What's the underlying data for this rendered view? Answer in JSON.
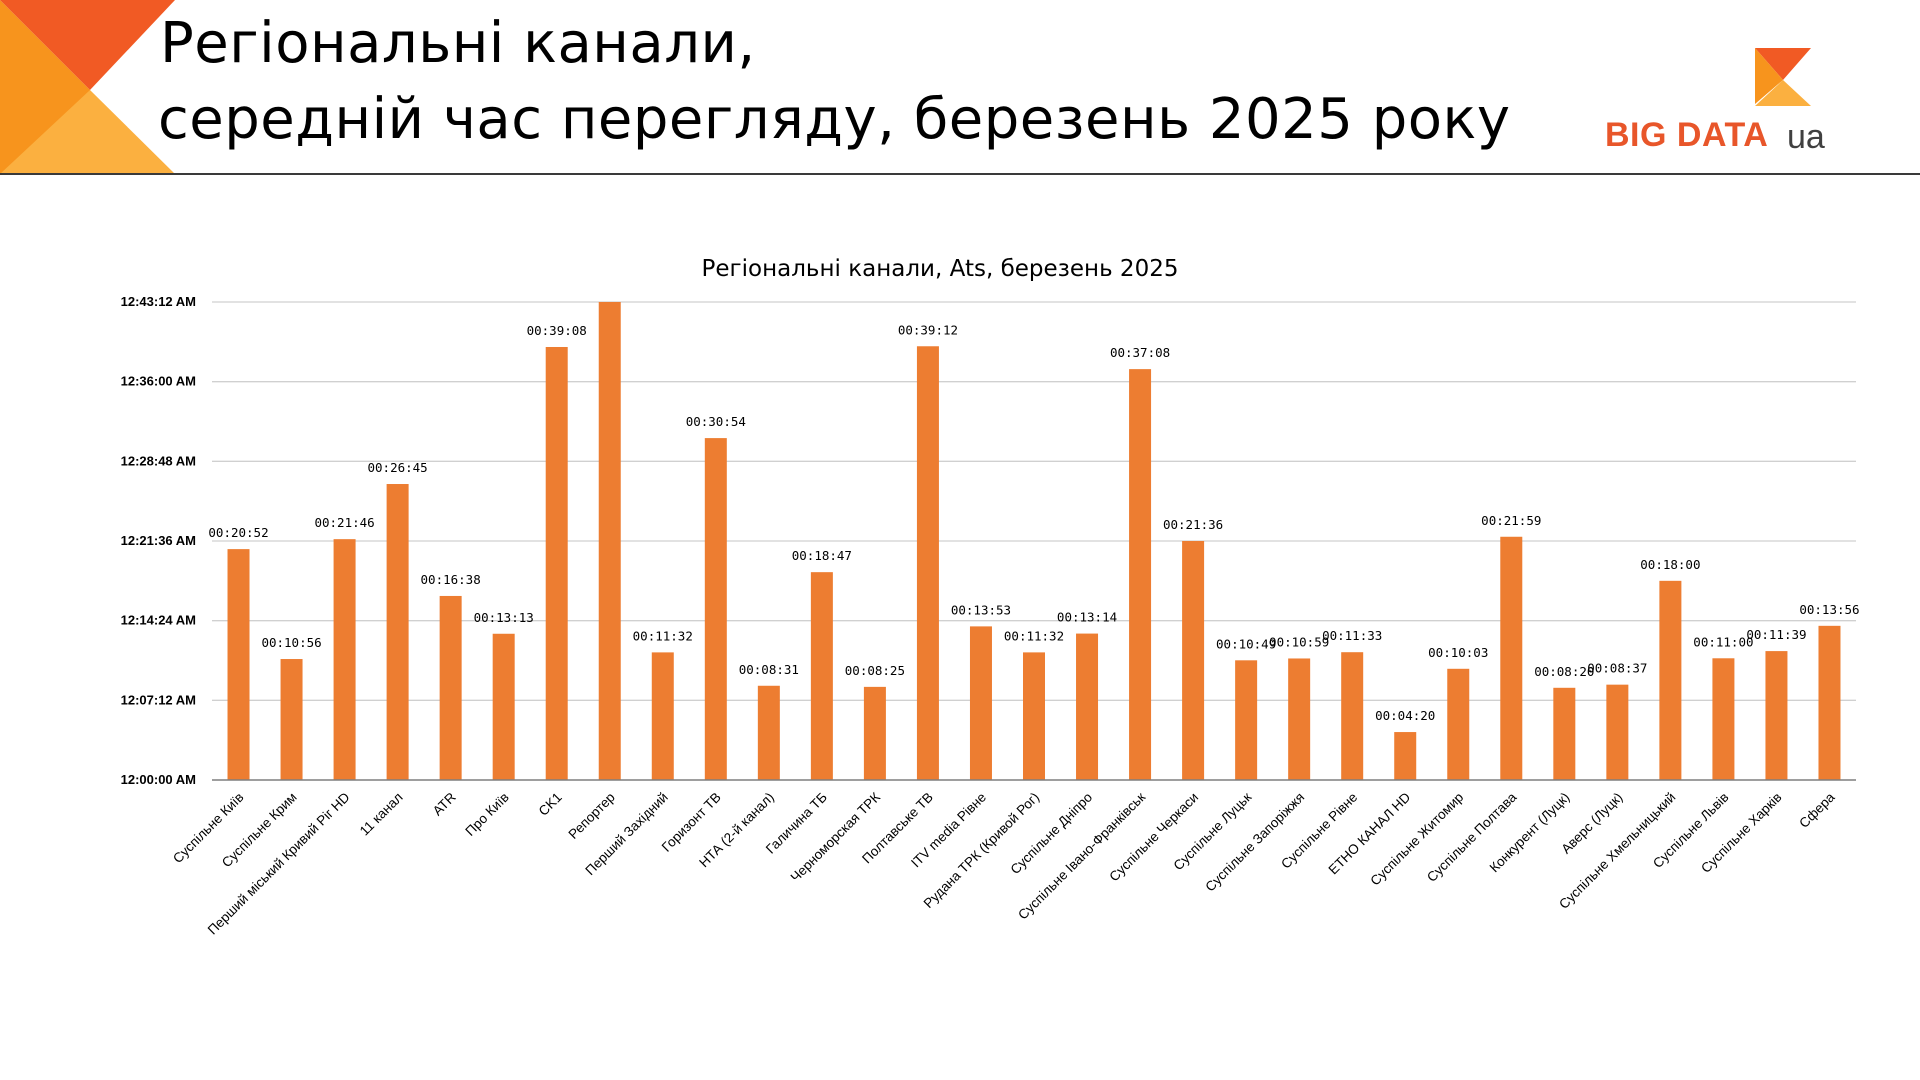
{
  "slide": {
    "title_line1": "Регіональні канали,",
    "title_line2": "середній час перегляду, березень 2025 року",
    "logo_text": "BIG DATA",
    "logo_suffix": "ua"
  },
  "colors": {
    "bar": "#ed7d31",
    "logo_orange": "#e8562a",
    "corner_dark": "#f15a24",
    "corner_light": "#fbb040"
  },
  "chart_data": {
    "type": "bar",
    "title": "Регіональні канали, Ats, березень 2025",
    "xlabel": "",
    "ylabel": "",
    "y_unit": "seconds",
    "ylim": [
      0,
      2592
    ],
    "yticks": [
      0,
      432,
      864,
      1296,
      1728,
      2160,
      2592
    ],
    "ytick_labels": [
      "12:00:00 AM",
      "12:07:12 AM",
      "12:14:24 AM",
      "12:21:36 AM",
      "12:28:48 AM",
      "12:36:00 AM",
      "12:43:12 AM"
    ],
    "grid": true,
    "legend": "none",
    "categories": [
      "Суспільне Київ",
      "Суспільне Крим",
      "Перший міський Кривий Ріг HD",
      "11 канал",
      "ATR",
      "Про Київ",
      "CK1",
      "Репортер",
      "Перший Західний",
      "Горизонт ТВ",
      "НТА (2-й канал)",
      "Галичина ТБ",
      "Черноморская ТРК",
      "Полтавське ТВ",
      "ITV media Рівне",
      "Рудана ТРК (Кривой Рог)",
      "Суспільне Дніпро",
      "Суспільне Івано-Франківськ",
      "Суспільне Черкаси",
      "Суспільне Луцьк",
      "Суспільне Запоріжжя",
      "Суспільне Рівне",
      "ЕТНО КАНАЛ HD",
      "Суспільне Житомир",
      "Суспільне Полтава",
      "Конкурент (Луцк)",
      "Аверс (Луцк)",
      "Суспільне Хмельницький",
      "Суспільне Львів",
      "Суспільне Харків",
      "Сфера"
    ],
    "values": [
      1252,
      656,
      1306,
      1605,
      998,
      793,
      2348,
      2600,
      692,
      1854,
      511,
      1127,
      505,
      2352,
      833,
      692,
      794,
      2228,
      1296,
      649,
      659,
      693,
      260,
      603,
      1319,
      500,
      517,
      1080,
      660,
      699,
      836
    ],
    "data_labels": [
      "00:20:52",
      "00:10:56",
      "00:21:46",
      "00:26:45",
      "00:16:38",
      "00:13:13",
      "00:39:08",
      "",
      "00:11:32",
      "00:30:54",
      "00:08:31",
      "00:18:47",
      "00:08:25",
      "00:39:12",
      "00:13:53",
      "00:11:32",
      "00:13:14",
      "00:37:08",
      "00:21:36",
      "00:10:49",
      "00:10:59",
      "00:11:33",
      "00:04:20",
      "00:10:03",
      "00:21:59",
      "00:08:20",
      "00:08:37",
      "00:18:00",
      "00:11:00",
      "00:11:39",
      "00:13:56"
    ]
  }
}
